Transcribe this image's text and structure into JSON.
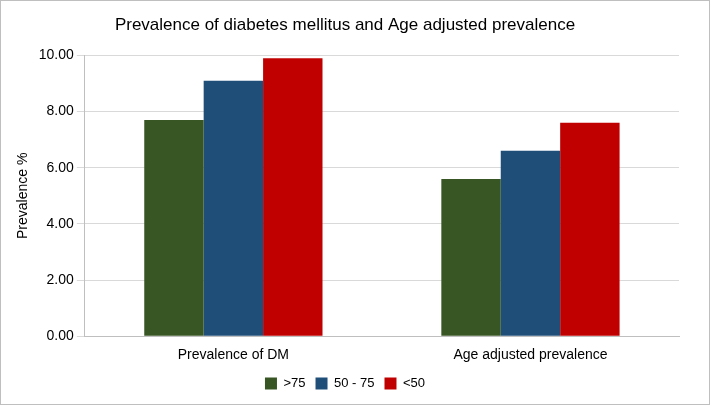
{
  "chart_data": {
    "type": "bar",
    "title": "Prevalence of diabetes mellitus and Age adjusted prevalence",
    "y_label": "Prevalence %",
    "categories": [
      "Prevalence of DM",
      "Age adjusted prevalence"
    ],
    "series": [
      {
        "name": ">75",
        "color": "#375623",
        "values": [
          7.7,
          5.6
        ]
      },
      {
        "name": "50 - 75",
        "color": "#1f4e79",
        "values": [
          9.1,
          6.6
        ]
      },
      {
        "name": "<50",
        "color": "#c00000",
        "values": [
          9.9,
          7.6
        ]
      }
    ],
    "ylim": [
      0,
      10
    ],
    "yticks": [
      {
        "value": 0,
        "label": "0.00"
      },
      {
        "value": 2,
        "label": "2.00"
      },
      {
        "value": 4,
        "label": "4.00"
      },
      {
        "value": 6,
        "label": "6.00"
      },
      {
        "value": 8,
        "label": "8.00"
      },
      {
        "value": 10,
        "label": "10.00"
      }
    ],
    "grid": true,
    "legend": "bottom"
  }
}
